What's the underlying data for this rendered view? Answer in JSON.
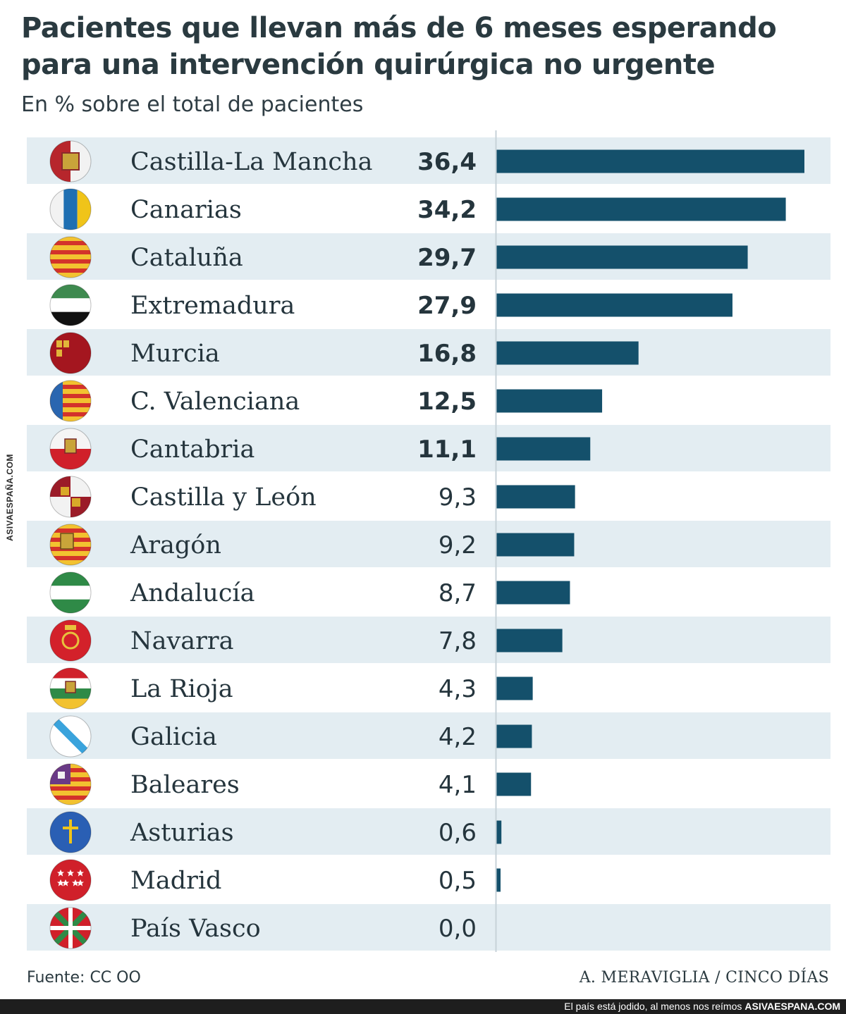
{
  "title": "Pacientes que llevan más de 6 meses esperando para una intervención quirúrgica no urgente",
  "subtitle": "En % sobre el total de pacientes",
  "source": "Fuente: CC OO",
  "credit": "A. MERAVIGLIA / CINCO DÍAS",
  "watermark": {
    "caption": "El país está jodido, al menos nos reímos",
    "site": "ASIVAESPANA.COM",
    "vertical": "ASIVAESPAÑA.COM"
  },
  "colors": {
    "bar": "#14506b",
    "stripe": "#e3edf2",
    "axis": "#c7d2d8",
    "text": "#25353d"
  },
  "chart_data": {
    "type": "bar",
    "orientation": "horizontal",
    "title": "Pacientes que llevan más de 6 meses esperando para una intervención quirúrgica no urgente",
    "subtitle": "En % sobre el total de pacientes",
    "categories": [
      "Castilla-La Mancha",
      "Canarias",
      "Cataluña",
      "Extremadura",
      "Murcia",
      "C. Valenciana",
      "Cantabria",
      "Castilla y León",
      "Aragón",
      "Andalucía",
      "Navarra",
      "La Rioja",
      "Galicia",
      "Baleares",
      "Asturias",
      "Madrid",
      "País Vasco"
    ],
    "values": [
      36.4,
      34.2,
      29.7,
      27.9,
      16.8,
      12.5,
      11.1,
      9.3,
      9.2,
      8.7,
      7.8,
      4.3,
      4.2,
      4.1,
      0.6,
      0.5,
      0.0
    ],
    "value_labels": [
      "36,4",
      "34,2",
      "29,7",
      "27,9",
      "16,8",
      "12,5",
      "11,1",
      "9,3",
      "9,2",
      "8,7",
      "7,8",
      "4,3",
      "4,2",
      "4,1",
      "0,6",
      "0,5",
      "0,0"
    ],
    "bold_values": [
      true,
      true,
      true,
      true,
      true,
      true,
      true,
      false,
      false,
      false,
      false,
      false,
      false,
      false,
      false,
      false,
      false
    ],
    "icons": [
      "castilla-la-mancha-flag-icon",
      "canarias-flag-icon",
      "cataluna-flag-icon",
      "extremadura-flag-icon",
      "murcia-flag-icon",
      "valenciana-flag-icon",
      "cantabria-flag-icon",
      "castilla-leon-flag-icon",
      "aragon-flag-icon",
      "andalucia-flag-icon",
      "navarra-flag-icon",
      "la-rioja-flag-icon",
      "galicia-flag-icon",
      "baleares-flag-icon",
      "asturias-flag-icon",
      "madrid-flag-icon",
      "pais-vasco-flag-icon"
    ],
    "xlim": [
      0,
      36.4
    ],
    "xlabel": "",
    "ylabel": "",
    "grid": false,
    "legend": "none"
  }
}
